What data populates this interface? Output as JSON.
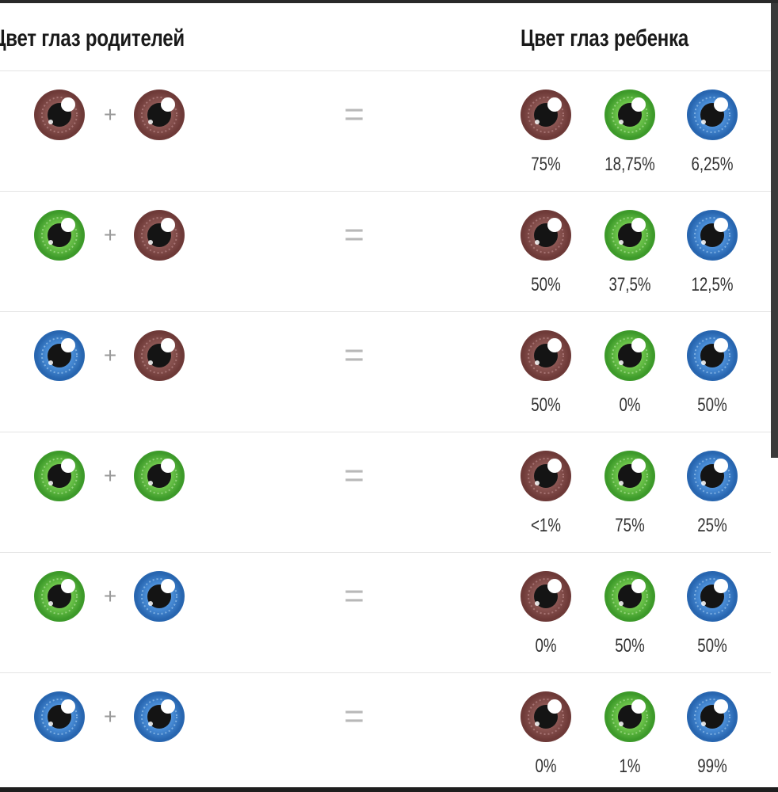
{
  "header": {
    "parents_title": "Цвет глаз родителей",
    "child_title": "Цвет глаз ребенка"
  },
  "colors": {
    "brown": {
      "iris": "#8b5552",
      "ring": "#6e3a38",
      "light": "#c09090"
    },
    "green": {
      "iris": "#6cc44a",
      "ring": "#3d9a2a",
      "light": "#b8e8a0"
    },
    "blue": {
      "iris": "#4a8ed8",
      "ring": "#2866b0",
      "light": "#a8d0f4"
    }
  },
  "symbols": {
    "plus": "+",
    "equals": "="
  },
  "rows": [
    {
      "parents": [
        "brown",
        "brown"
      ],
      "child": [
        {
          "eye": "brown",
          "pct": "75%"
        },
        {
          "eye": "green",
          "pct": "18,75%"
        },
        {
          "eye": "blue",
          "pct": "6,25%"
        }
      ]
    },
    {
      "parents": [
        "green",
        "brown"
      ],
      "child": [
        {
          "eye": "brown",
          "pct": "50%"
        },
        {
          "eye": "green",
          "pct": "37,5%"
        },
        {
          "eye": "blue",
          "pct": "12,5%"
        }
      ]
    },
    {
      "parents": [
        "blue",
        "brown"
      ],
      "child": [
        {
          "eye": "brown",
          "pct": "50%"
        },
        {
          "eye": "green",
          "pct": "0%"
        },
        {
          "eye": "blue",
          "pct": "50%"
        }
      ]
    },
    {
      "parents": [
        "green",
        "green"
      ],
      "child": [
        {
          "eye": "brown",
          "pct": "<1%"
        },
        {
          "eye": "green",
          "pct": "75%"
        },
        {
          "eye": "blue",
          "pct": "25%"
        }
      ]
    },
    {
      "parents": [
        "green",
        "blue"
      ],
      "child": [
        {
          "eye": "brown",
          "pct": "0%"
        },
        {
          "eye": "green",
          "pct": "50%"
        },
        {
          "eye": "blue",
          "pct": "50%"
        }
      ]
    },
    {
      "parents": [
        "blue",
        "blue"
      ],
      "child": [
        {
          "eye": "brown",
          "pct": "0%"
        },
        {
          "eye": "green",
          "pct": "1%"
        },
        {
          "eye": "blue",
          "pct": "99%"
        }
      ]
    }
  ]
}
